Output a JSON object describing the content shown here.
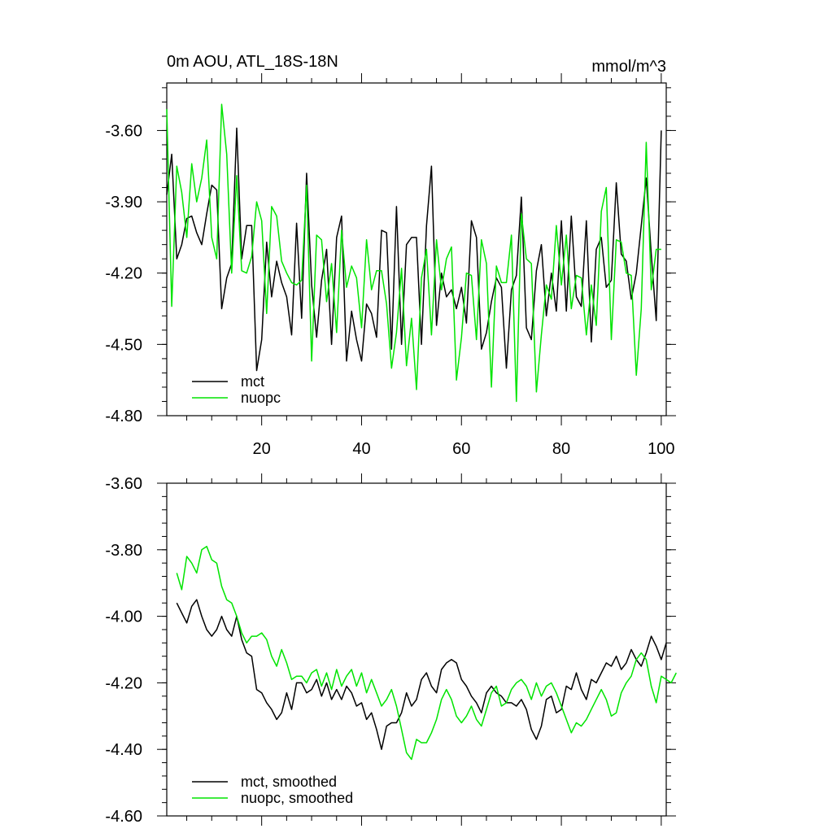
{
  "chart_data": [
    {
      "type": "line",
      "title": "0m AOU, ATL_18S-18N",
      "units": "mmol/m^3",
      "xlim": [
        1,
        101
      ],
      "ylim": [
        -4.8,
        -3.4
      ],
      "x_ticks": [
        20,
        40,
        60,
        80,
        100
      ],
      "y_ticks": [
        -3.6,
        -3.9,
        -4.2,
        -4.5,
        -4.8
      ],
      "y_tick_labels": [
        "-3.60",
        "-3.90",
        "-4.20",
        "-4.50",
        "-4.80"
      ],
      "legend": "bottom-left",
      "series": [
        {
          "name": "mct",
          "color": "#000000",
          "x0": 1,
          "values": [
            -3.87,
            -3.7,
            -4.14,
            -4.08,
            -3.97,
            -3.96,
            -4.03,
            -4.08,
            -3.95,
            -3.83,
            -3.85,
            -4.35,
            -4.22,
            -4.16,
            -3.59,
            -4.14,
            -4.0,
            -4.0,
            -4.61,
            -4.48,
            -4.07,
            -4.3,
            -4.15,
            -4.24,
            -4.3,
            -4.46,
            -3.99,
            -4.39,
            -3.78,
            -4.25,
            -4.47,
            -4.23,
            -4.1,
            -4.5,
            -4.05,
            -3.96,
            -4.57,
            -4.36,
            -4.48,
            -4.57,
            -4.33,
            -4.37,
            -4.47,
            -4.02,
            -4.03,
            -4.52,
            -3.92,
            -4.5,
            -4.08,
            -4.05,
            -4.05,
            -4.5,
            -4.0,
            -3.75,
            -4.42,
            -4.2,
            -4.3,
            -4.27,
            -4.35,
            -4.26,
            -4.41,
            -3.98,
            -4.05,
            -4.52,
            -4.45,
            -4.32,
            -4.22,
            -4.26,
            -4.6,
            -4.27,
            -4.21,
            -3.88,
            -4.43,
            -4.48,
            -4.19,
            -4.08,
            -4.38,
            -4.2,
            -4.36,
            -3.98,
            -4.36,
            -3.96,
            -4.3,
            -4.34,
            -3.98,
            -4.49,
            -4.1,
            -4.05,
            -4.26,
            -4.23,
            -3.82,
            -4.12,
            -4.15,
            -4.31,
            -4.2,
            -4.0,
            -3.8,
            -4.12,
            -4.4,
            -3.6
          ]
        },
        {
          "name": "nuopc",
          "color": "#00e400",
          "x0": 1,
          "values": [
            -3.51,
            -4.34,
            -3.75,
            -3.86,
            -4.05,
            -3.74,
            -3.9,
            -3.8,
            -3.64,
            -4.05,
            -4.14,
            -3.49,
            -3.7,
            -4.2,
            -3.79,
            -4.19,
            -4.2,
            -4.13,
            -3.9,
            -3.98,
            -4.37,
            -3.92,
            -3.96,
            -4.15,
            -4.2,
            -4.24,
            -4.25,
            -4.23,
            -3.83,
            -4.57,
            -4.04,
            -4.06,
            -4.32,
            -4.16,
            -4.45,
            -4.02,
            -4.26,
            -4.17,
            -4.22,
            -4.43,
            -4.06,
            -4.27,
            -4.19,
            -4.19,
            -4.33,
            -4.6,
            -4.45,
            -4.18,
            -4.59,
            -4.39,
            -4.69,
            -4.22,
            -4.1,
            -4.46,
            -4.06,
            -4.27,
            -4.14,
            -4.09,
            -4.65,
            -4.47,
            -4.2,
            -4.21,
            -4.48,
            -4.06,
            -4.16,
            -4.68,
            -4.17,
            -4.24,
            -4.24,
            -4.04,
            -4.74,
            -3.95,
            -4.14,
            -4.16,
            -4.7,
            -4.46,
            -4.25,
            -4.31,
            -4.0,
            -4.25,
            -4.04,
            -4.35,
            -4.21,
            -4.22,
            -4.46,
            -4.25,
            -4.42,
            -3.94,
            -3.84,
            -4.48,
            -4.06,
            -4.07,
            -4.2,
            -4.21,
            -4.63,
            -4.35,
            -3.65,
            -4.27,
            -4.1,
            -4.1
          ]
        }
      ]
    },
    {
      "type": "line",
      "title": "",
      "xlim": [
        1,
        101
      ],
      "ylim": [
        -4.6,
        -3.6
      ],
      "x_ticks": [
        20,
        40,
        60,
        80,
        100
      ],
      "y_ticks": [
        -3.6,
        -3.8,
        -4.0,
        -4.2,
        -4.4,
        -4.6
      ],
      "y_tick_labels": [
        "-3.60",
        "-3.80",
        "-4.00",
        "-4.20",
        "-4.40",
        "-4.60"
      ],
      "legend": "bottom-left",
      "series": [
        {
          "name": "mct, smoothed",
          "color": "#000000",
          "x0": 3,
          "values": [
            -3.96,
            -3.99,
            -4.02,
            -3.97,
            -3.95,
            -4.0,
            -4.04,
            -4.06,
            -4.04,
            -4.0,
            -4.04,
            -4.06,
            -4.0,
            -4.07,
            -4.11,
            -4.12,
            -4.22,
            -4.23,
            -4.26,
            -4.28,
            -4.31,
            -4.29,
            -4.23,
            -4.28,
            -4.2,
            -4.2,
            -4.23,
            -4.22,
            -4.19,
            -4.24,
            -4.2,
            -4.25,
            -4.22,
            -4.25,
            -4.21,
            -4.23,
            -4.27,
            -4.26,
            -4.31,
            -4.29,
            -4.34,
            -4.4,
            -4.33,
            -4.32,
            -4.32,
            -4.29,
            -4.23,
            -4.27,
            -4.25,
            -4.19,
            -4.17,
            -4.21,
            -4.23,
            -4.16,
            -4.14,
            -4.13,
            -4.14,
            -4.19,
            -4.21,
            -4.24,
            -4.26,
            -4.29,
            -4.23,
            -4.21,
            -4.23,
            -4.24,
            -4.26,
            -4.26,
            -4.27,
            -4.25,
            -4.28,
            -4.34,
            -4.37,
            -4.33,
            -4.25,
            -4.24,
            -4.29,
            -4.28,
            -4.21,
            -4.22,
            -4.17,
            -4.22,
            -4.25,
            -4.19,
            -4.2,
            -4.17,
            -4.14,
            -4.15,
            -4.12,
            -4.16,
            -4.14,
            -4.1,
            -4.13,
            -4.15,
            -4.11,
            -4.06,
            -4.09,
            -4.13,
            -4.08
          ]
        },
        {
          "name": "nuopc, smoothed",
          "color": "#00e400",
          "x0": 3,
          "values": [
            -3.87,
            -3.92,
            -3.82,
            -3.84,
            -3.87,
            -3.8,
            -3.79,
            -3.83,
            -3.84,
            -3.91,
            -3.95,
            -3.96,
            -4.0,
            -4.05,
            -4.08,
            -4.06,
            -4.06,
            -4.05,
            -4.07,
            -4.12,
            -4.15,
            -4.1,
            -4.14,
            -4.19,
            -4.18,
            -4.18,
            -4.2,
            -4.17,
            -4.16,
            -4.21,
            -4.17,
            -4.22,
            -4.16,
            -4.21,
            -4.18,
            -4.16,
            -4.21,
            -4.17,
            -4.23,
            -4.19,
            -4.23,
            -4.27,
            -4.25,
            -4.22,
            -4.27,
            -4.34,
            -4.41,
            -4.43,
            -4.37,
            -4.38,
            -4.38,
            -4.35,
            -4.31,
            -4.25,
            -4.22,
            -4.25,
            -4.3,
            -4.32,
            -4.3,
            -4.27,
            -4.31,
            -4.33,
            -4.28,
            -4.23,
            -4.21,
            -4.27,
            -4.26,
            -4.22,
            -4.2,
            -4.19,
            -4.21,
            -4.25,
            -4.2,
            -4.24,
            -4.21,
            -4.2,
            -4.23,
            -4.27,
            -4.31,
            -4.35,
            -4.32,
            -4.33,
            -4.31,
            -4.28,
            -4.25,
            -4.22,
            -4.25,
            -4.3,
            -4.29,
            -4.23,
            -4.2,
            -4.18,
            -4.13,
            -4.11,
            -4.13,
            -4.21,
            -4.26,
            -4.18,
            -4.19,
            -4.2,
            -4.17
          ]
        }
      ]
    }
  ]
}
